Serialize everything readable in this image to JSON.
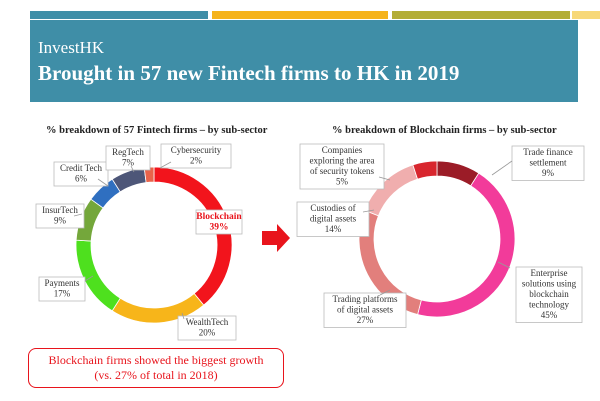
{
  "header": {
    "brand": "InvestHK",
    "headline": "Brought in 57 new Fintech firms to HK in 2019"
  },
  "callout": {
    "line1": "Blockchain firms showed the biggest growth",
    "line2": "(vs. 27% of total in 2018)"
  },
  "colors": {
    "banner": "#3f8ea7",
    "highlight": "#e8141c"
  },
  "chart_data": [
    {
      "type": "pie",
      "title": "% breakdown of 57 Fintech firms – by sub-sector",
      "highlight": "Blockchain",
      "slices": [
        {
          "label": "Blockchain",
          "value": 39,
          "display": "39%",
          "color": "#f2141c"
        },
        {
          "label": "WealthTech",
          "value": 20,
          "display": "20%",
          "color": "#f7b51a"
        },
        {
          "label": "Payments",
          "value": 17,
          "display": "17%",
          "color": "#4ee01e"
        },
        {
          "label": "InsurTech",
          "value": 9,
          "display": "9%",
          "color": "#74a73b"
        },
        {
          "label": "Credit Tech",
          "value": 6,
          "display": "6%",
          "color": "#2f6fc0"
        },
        {
          "label": "RegTech",
          "value": 7,
          "display": "7%",
          "color": "#4d5678"
        },
        {
          "label": "Cybersecurity",
          "value": 2,
          "display": "2%",
          "color": "#e9634a"
        }
      ]
    },
    {
      "type": "pie",
      "title": "% breakdown of Blockchain firms – by sub-sector",
      "slices": [
        {
          "label": "Trade finance settlement",
          "lines": [
            "Trade finance",
            "settlement"
          ],
          "value": 9,
          "display": "9%",
          "color": "#9b1c27"
        },
        {
          "label": "Enterprise solutions using blockchain technology",
          "lines": [
            "Enterprise",
            "solutions using",
            "blockchain",
            "technology"
          ],
          "value": 45,
          "display": "45%",
          "color": "#f23b9a"
        },
        {
          "label": "Trading platforms of digital assets",
          "lines": [
            "Trading platforms",
            "of digital assets"
          ],
          "value": 27,
          "display": "27%",
          "color": "#e27f7c"
        },
        {
          "label": "Custodies of digital assets",
          "lines": [
            "Custodies of",
            "digital assets"
          ],
          "value": 14,
          "display": "14%",
          "color": "#f0aeae"
        },
        {
          "label": "Companies exploring the area of security tokens",
          "lines": [
            "Companies",
            "exploring the area",
            "of security tokens"
          ],
          "value": 5,
          "display": "5%",
          "color": "#d8262e"
        }
      ]
    }
  ]
}
